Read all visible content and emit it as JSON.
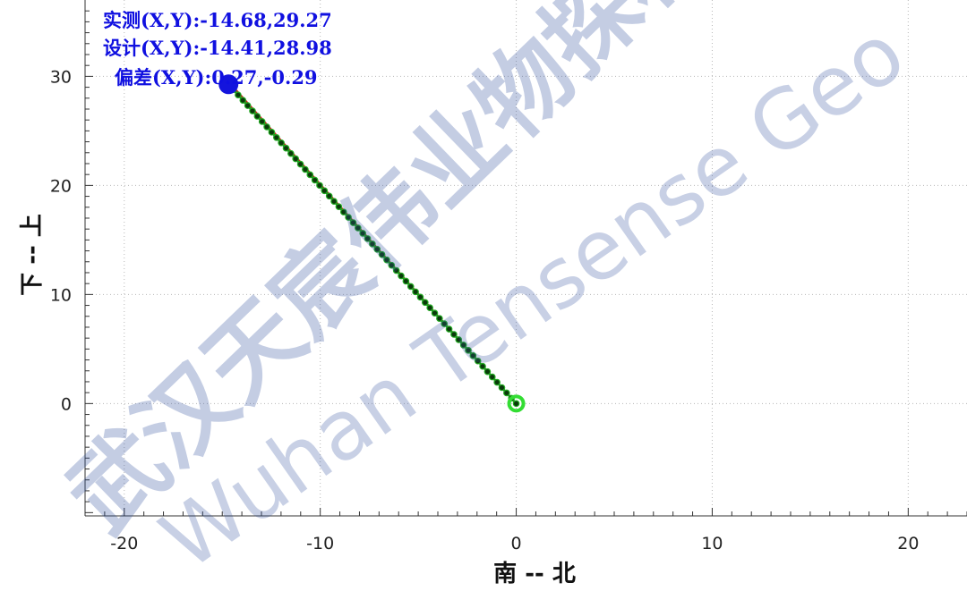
{
  "chart_data": {
    "type": "line",
    "xlabel": "南 -- 北",
    "ylabel": "下 -- 上",
    "xlim": [
      -22,
      23
    ],
    "ylim": [
      -10.3,
      37
    ],
    "x_ticks": [
      -20,
      -10,
      0,
      10,
      20
    ],
    "y_ticks": [
      0,
      10,
      20,
      30
    ],
    "grid": true,
    "series": [
      {
        "role": "design",
        "color": "#d42020",
        "x": [
          0,
          -14.41
        ],
        "y": [
          0,
          28.98
        ]
      },
      {
        "role": "measured",
        "color": "#1a8a1a",
        "marker_fill": "#0a3a0a",
        "n_points": 60,
        "x": [
          0,
          -14.68
        ],
        "y": [
          0,
          29.27
        ]
      }
    ],
    "start_marker_color": "#33dd33",
    "end_marker_color": "#1414dd",
    "info_lines": [
      "实测(X,Y):-14.68,29.27",
      "设计(X,Y):-14.41,28.98",
      "偏差(X,Y):0.27,-0.29"
    ]
  },
  "watermark": {
    "chinese": "武汉天宸伟业物探科技",
    "english": "Wuhan Tensense Geo"
  }
}
